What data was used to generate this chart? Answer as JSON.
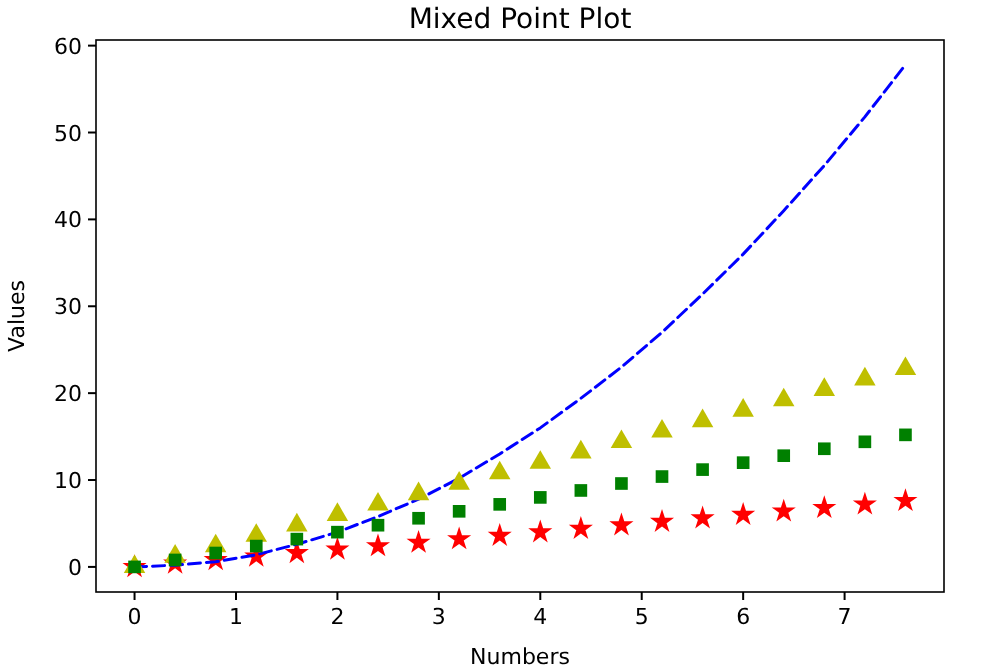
{
  "chart_data": {
    "type": "scatter",
    "title": "Mixed Point Plot",
    "xlabel": "Numbers",
    "ylabel": "Values",
    "x": [
      0,
      0.4,
      0.8,
      1.2,
      1.6,
      2,
      2.4,
      2.8,
      3.2,
      3.6,
      4,
      4.4,
      4.8,
      5.2,
      5.6,
      6,
      6.4,
      6.8,
      7.2,
      7.6
    ],
    "xlim": [
      -0.38,
      7.98
    ],
    "xticks": [
      0,
      1,
      2,
      3,
      4,
      5,
      6,
      7
    ],
    "ylim": [
      -2.888,
      60.648
    ],
    "yticks": [
      0,
      10,
      20,
      30,
      40,
      50,
      60
    ],
    "series": [
      {
        "color": "#ff0000",
        "marker": "star",
        "values": [
          0,
          0.4,
          0.8,
          1.2,
          1.6,
          2,
          2.4,
          2.8,
          3.2,
          3.6,
          4,
          4.4,
          4.8,
          5.2,
          5.6,
          6,
          6.4,
          6.8,
          7.2,
          7.6
        ]
      },
      {
        "type": "line",
        "color": "#0000ff",
        "marker": "none",
        "line_style": "dashed",
        "values": [
          0,
          0.2,
          0.6,
          1.4,
          2.6,
          4,
          5.8,
          7.8,
          10.2,
          13,
          16,
          19.4,
          23,
          27,
          31.4,
          36,
          41,
          46.2,
          51.8,
          57.8
        ]
      },
      {
        "color": "#bfbf00",
        "marker": "triangle",
        "values": [
          0,
          1.2,
          2.4,
          3.6,
          4.8,
          6,
          7.2,
          8.4,
          9.6,
          10.8,
          12,
          13.2,
          14.4,
          15.6,
          16.8,
          18,
          19.2,
          20.4,
          21.6,
          22.8
        ]
      },
      {
        "color": "#008000",
        "marker": "square",
        "values": [
          0,
          0.8,
          1.6,
          2.4,
          3.2,
          4,
          4.8,
          5.6,
          6.4,
          7.2,
          8,
          8.8,
          9.6,
          10.4,
          11.2,
          12,
          12.8,
          13.6,
          14.4,
          15.2
        ]
      }
    ]
  }
}
